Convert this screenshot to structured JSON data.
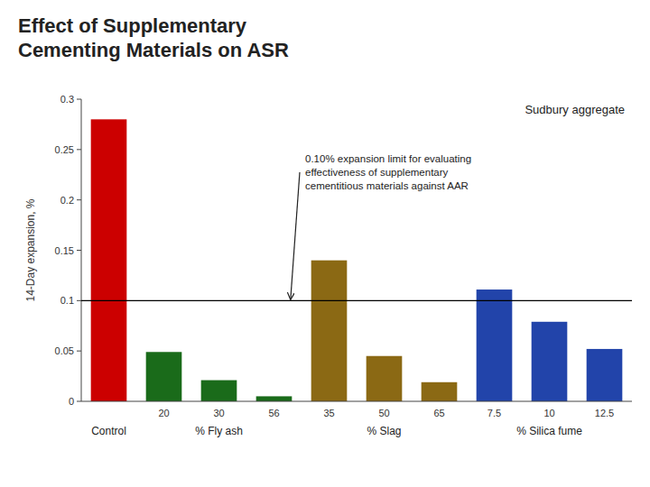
{
  "chart_data": {
    "type": "bar",
    "title": "Effect of Supplementary\nCementing Materials on ASR",
    "ylabel": "14-Day expansion, %",
    "categories": [
      null,
      "20",
      "30",
      "56",
      "35",
      "50",
      "65",
      "7.5",
      "10",
      "12.5"
    ],
    "values": [
      0.28,
      0.049,
      0.021,
      0.005,
      0.14,
      0.045,
      0.019,
      0.111,
      0.079,
      0.052
    ],
    "colors": [
      "#CC0000",
      "#1A6B1A",
      "#1A6B1A",
      "#1A6B1A",
      "#8B6914",
      "#8B6914",
      "#8B6914",
      "#2244AA",
      "#2244AA",
      "#2244AA"
    ],
    "groups": [
      "Control",
      "% Fly ash",
      "% Slag",
      "% Silica fume"
    ],
    "ylim": [
      0,
      0.3
    ],
    "yticks": [
      0,
      0.05,
      0.1,
      0.15,
      0.2,
      0.25,
      0.3
    ],
    "reference_line": 0.1,
    "annotation": "0.10% expansion limit for evaluating\neffectiveness of supplementary\ncementitious materials against AAR",
    "note": "Sudbury aggregate"
  }
}
